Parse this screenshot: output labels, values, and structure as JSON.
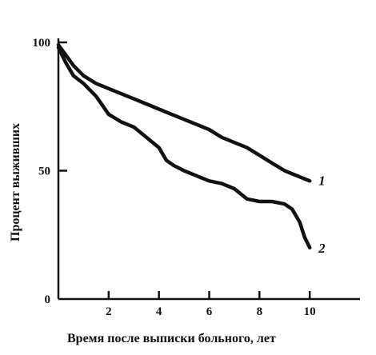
{
  "chart_data": {
    "type": "line",
    "title": "",
    "xlabel": "Время после выписки больного, лет",
    "ylabel": "Процент выживших",
    "xlim": [
      0,
      12
    ],
    "ylim": [
      0,
      100
    ],
    "x_ticks": [
      2,
      4,
      6,
      8,
      10
    ],
    "x_tick_labels": [
      "2",
      "4",
      "6",
      "8",
      "10"
    ],
    "y_ticks": [
      0,
      50,
      100
    ],
    "y_tick_labels": [
      "0",
      "50",
      "100"
    ],
    "grid": false,
    "legend": "none",
    "series": [
      {
        "name": "1",
        "x": [
          0,
          0.3,
          0.6,
          1,
          1.5,
          2,
          2.5,
          3,
          3.5,
          4,
          4.5,
          5,
          5.5,
          6,
          6.5,
          7,
          7.5,
          8,
          8.5,
          9,
          9.5,
          10
        ],
        "y": [
          99,
          95,
          91,
          87,
          84,
          82,
          80,
          78,
          76,
          74,
          72,
          70,
          68,
          66,
          63,
          61,
          59,
          56,
          53,
          50,
          48,
          46
        ]
      },
      {
        "name": "2",
        "x": [
          0,
          0.3,
          0.6,
          1,
          1.5,
          2,
          2.5,
          3,
          3.5,
          4,
          4.3,
          4.6,
          5,
          5.5,
          6,
          6.5,
          7,
          7.5,
          8,
          8.5,
          9,
          9.3,
          9.6,
          9.8,
          10
        ],
        "y": [
          98,
          92,
          87,
          84,
          79,
          72,
          69,
          67,
          63,
          59,
          54,
          52,
          50,
          48,
          46,
          45,
          43,
          39,
          38,
          38,
          37,
          35,
          30,
          24,
          20
        ]
      }
    ]
  }
}
